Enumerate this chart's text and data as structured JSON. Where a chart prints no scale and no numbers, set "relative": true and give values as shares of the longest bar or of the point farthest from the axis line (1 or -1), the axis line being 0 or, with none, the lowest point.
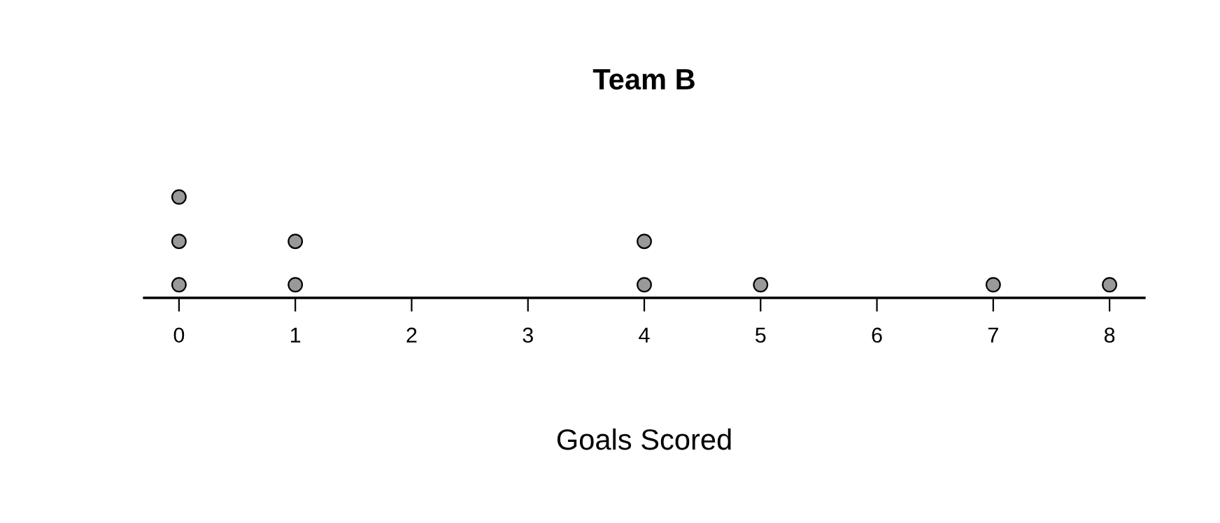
{
  "chart_data": {
    "type": "scatter",
    "title": "Team B",
    "xlabel": "Goals Scored",
    "relative": true,
    "x": [
      0,
      0,
      0,
      1,
      1,
      4,
      4,
      5,
      7,
      8
    ],
    "values": [
      0.13,
      0.56,
      1,
      0.13,
      0.56,
      0.13,
      0.56,
      0.13,
      0.13,
      0.13
    ],
    "color": "#999999",
    "marker": "circle",
    "xlim": [
      -0.3,
      8.3
    ],
    "xticks": [
      0,
      1,
      2,
      3,
      4,
      5,
      6,
      7,
      8
    ],
    "tick_labels": "x",
    "grid": false
  }
}
